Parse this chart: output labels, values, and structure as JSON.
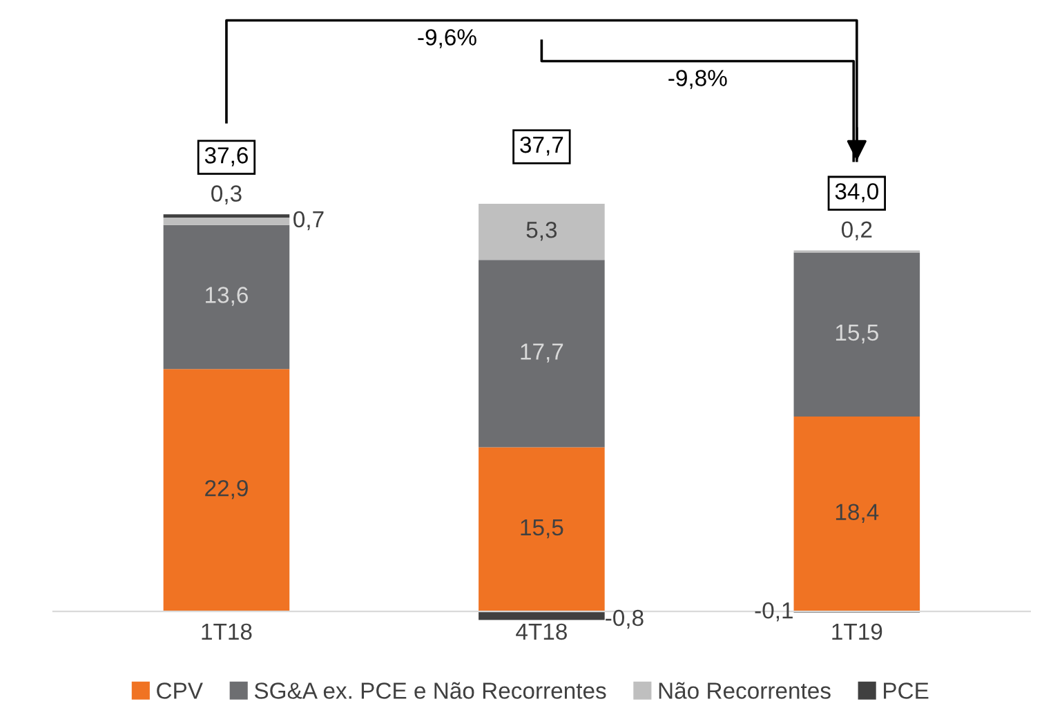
{
  "chart_data": {
    "type": "bar",
    "stacked": true,
    "categories": [
      "1T18",
      "4T18",
      "1T19"
    ],
    "series": [
      {
        "name": "CPV",
        "color": "#f07323",
        "values": [
          22.9,
          15.5,
          18.4
        ],
        "value_labels": [
          "22,9",
          "15,5",
          "18,4"
        ]
      },
      {
        "name": "SG&A ex. PCE e Não Recorrentes",
        "color": "#6d6e71",
        "values": [
          13.6,
          17.7,
          15.5
        ],
        "value_labels": [
          "13,6",
          "17,7",
          "15,5"
        ]
      },
      {
        "name": "Não Recorrentes",
        "color": "#bfbfbf",
        "values": [
          0.7,
          5.3,
          0.2
        ],
        "value_labels": [
          "0,7",
          "5,3",
          "0,2"
        ]
      },
      {
        "name": "PCE",
        "color": "#404040",
        "values": [
          0.3,
          -0.8,
          -0.1
        ],
        "value_labels": [
          "0,3",
          "-0,8",
          "-0,1"
        ]
      }
    ],
    "totals": [
      "37,6",
      "37,7",
      "34,0"
    ],
    "annotations": [
      "-9,6%",
      "-9,8%"
    ],
    "legend": "bottom",
    "grid": false
  }
}
